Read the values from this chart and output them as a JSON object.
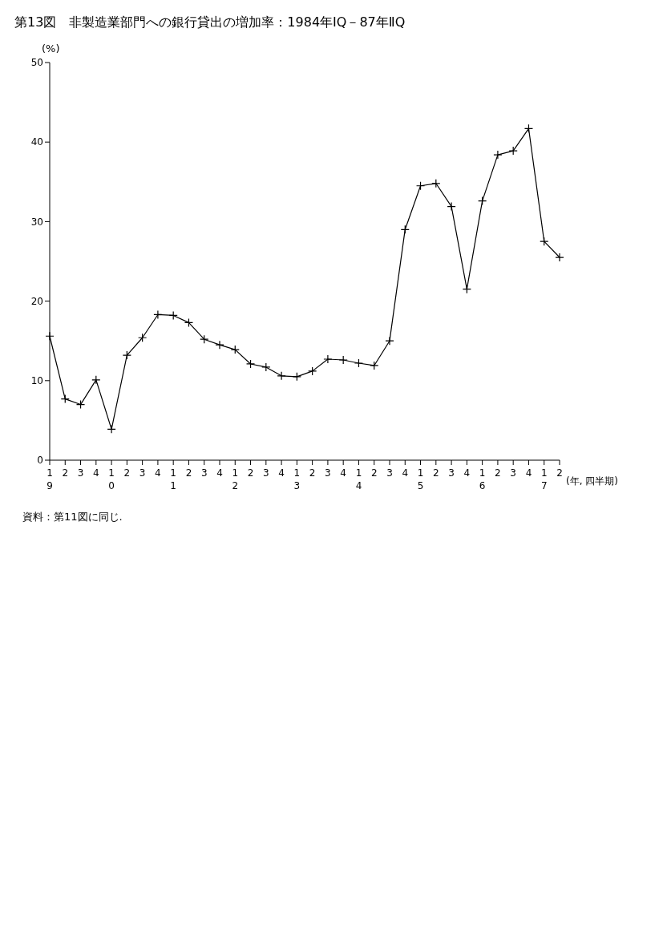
{
  "chart_data": {
    "type": "line",
    "title": "第13図　非製造業部門への銀行貸出の増加率：1984年ⅠQ－87年ⅡQ",
    "ylabel": "(%)",
    "xlabel": "(年, 四半期)",
    "annotations": [
      "資料：第11図に同じ."
    ],
    "categories": [
      "1\n9",
      "2",
      "3",
      "4",
      "1\n0",
      "2",
      "3",
      "4",
      "1\n1",
      "2",
      "3",
      "4",
      "1\n2",
      "2",
      "3",
      "4",
      "1\n3",
      "2",
      "3",
      "4",
      "1\n4",
      "2",
      "3",
      "4",
      "1\n5",
      "2",
      "3",
      "4",
      "1\n6",
      "2",
      "3",
      "4",
      "1\n7",
      "2"
    ],
    "series": [
      {
        "color": "#000000",
        "values": [
          15.6,
          7.7,
          7.0,
          10.1,
          3.9,
          13.2,
          15.4,
          18.3,
          18.2,
          17.3,
          15.2,
          14.5,
          13.9,
          12.1,
          11.7,
          10.6,
          10.5,
          11.2,
          12.7,
          12.6,
          12.2,
          11.9,
          15.0,
          29.0,
          34.5,
          34.8,
          31.9,
          21.5,
          32.6,
          38.4,
          38.9,
          41.7,
          27.5,
          25.5
        ]
      }
    ],
    "ylim": [
      0,
      50
    ],
    "yticks": [
      0,
      10,
      20,
      30,
      40,
      50
    ],
    "grid": false,
    "marker": "cross",
    "line_style": "solid"
  }
}
